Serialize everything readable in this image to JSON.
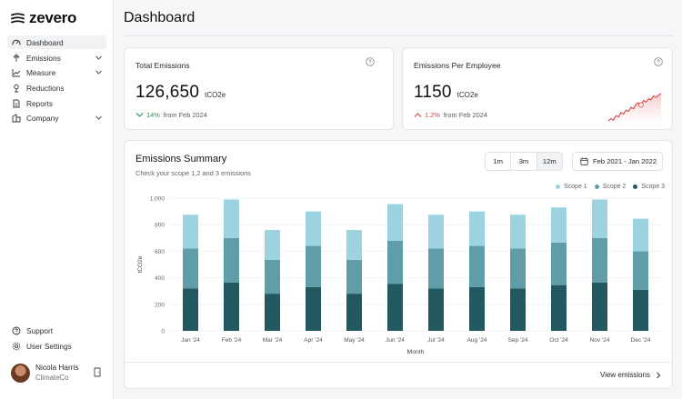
{
  "brand": {
    "name": "zevero"
  },
  "sidebar": {
    "items": [
      {
        "label": "Dashboard",
        "icon": "gauge-icon",
        "active": true,
        "expandable": false
      },
      {
        "label": "Emissions",
        "icon": "cloud-icon",
        "active": false,
        "expandable": true
      },
      {
        "label": "Measure",
        "icon": "line-chart-icon",
        "active": false,
        "expandable": true
      },
      {
        "label": "Reductions",
        "icon": "reduce-icon",
        "active": false,
        "expandable": false
      },
      {
        "label": "Reports",
        "icon": "document-icon",
        "active": false,
        "expandable": false
      },
      {
        "label": "Company",
        "icon": "building-icon",
        "active": false,
        "expandable": true
      }
    ],
    "footer": [
      {
        "label": "Support",
        "icon": "help-icon"
      },
      {
        "label": "User Settings",
        "icon": "gear-icon"
      }
    ],
    "user": {
      "name": "Nicola Harris",
      "org": "ClimateCo"
    }
  },
  "page": {
    "title": "Dashboard"
  },
  "stats": [
    {
      "label": "Total Emissions",
      "value": "126,650",
      "unit": "tCO2e",
      "change_pct": "14%",
      "change_suffix": "from Feb 2024",
      "direction": "down",
      "tone_color": "#2e8b57"
    },
    {
      "label": "Emissions Per Employee",
      "value": "1150",
      "unit": "tCO2e",
      "change_pct": "1.2%",
      "change_suffix": "from Feb 2024",
      "direction": "up",
      "tone_color": "#d64545"
    }
  ],
  "summary": {
    "title": "Emissions Summary",
    "subtitle": "Check your scope 1,2 and 3 emissions",
    "ranges": [
      "1m",
      "3m",
      "12m"
    ],
    "selected_range": "12m",
    "date_range": "Feb 2021 - Jan 2022",
    "view_link": "View emissions"
  },
  "colors": {
    "scope1": "#9dd3e0",
    "scope2": "#5f9ea8",
    "scope3": "#235860",
    "accent_red": "#d64545"
  },
  "chart_data": {
    "type": "bar",
    "stacked": true,
    "categories": [
      "Jan '24",
      "Feb '24",
      "Mar '24",
      "Apr '24",
      "May '24",
      "Jun '24",
      "Jul '24",
      "Aug '24",
      "Sep '24",
      "Oct '24",
      "Nov '24",
      "Dec '24"
    ],
    "series": [
      {
        "name": "Scope 3",
        "values": [
          320,
          365,
          280,
          330,
          280,
          355,
          320,
          330,
          320,
          345,
          365,
          310
        ]
      },
      {
        "name": "Scope 2",
        "values": [
          300,
          335,
          255,
          310,
          255,
          325,
          300,
          310,
          300,
          320,
          335,
          290
        ]
      },
      {
        "name": "Scope 1",
        "values": [
          255,
          290,
          225,
          260,
          225,
          275,
          255,
          260,
          255,
          265,
          290,
          245
        ]
      }
    ],
    "xlabel": "Month",
    "ylabel": "tCO2e",
    "ylim": [
      0,
      1000
    ],
    "yticks": [
      "0",
      "200",
      "400",
      "600",
      "800",
      "1,000"
    ],
    "legend": [
      "Scope 1",
      "Scope 2",
      "Scope 3"
    ],
    "legend_position": "top-right",
    "grid": true
  },
  "sparkline_data": {
    "type": "line",
    "values": [
      12,
      18,
      14,
      26,
      22,
      34,
      30,
      40,
      37,
      48,
      44,
      56,
      60,
      54,
      66,
      62,
      70,
      68,
      78,
      74,
      80,
      84
    ]
  }
}
